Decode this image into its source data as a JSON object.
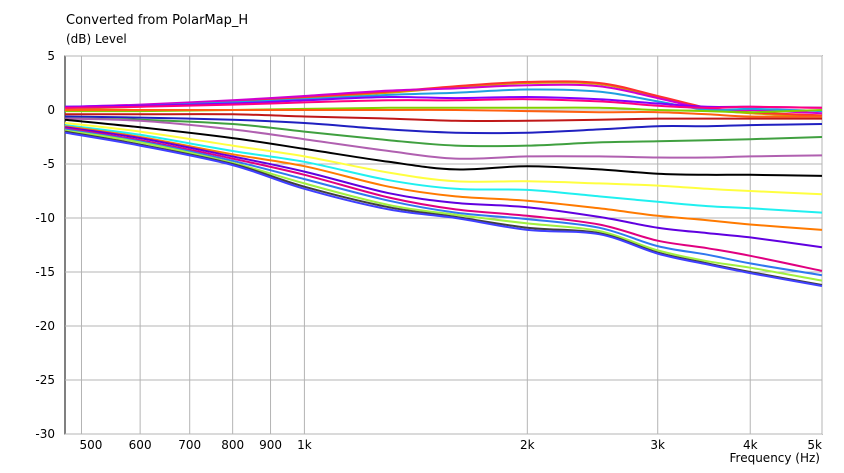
{
  "chart_data": {
    "type": "line",
    "title": "Converted from PolarMap_H",
    "ylabel": "(dB)  Level",
    "xlabel": "Frequency  (Hz)",
    "x_scale": "log",
    "xlim": [
      475,
      5000
    ],
    "ylim": [
      -30,
      5
    ],
    "grid": true,
    "colors": {
      "plot_background": "#ffffff",
      "grid": "#b4b4b4",
      "axis": "#000000"
    },
    "x_ticks": [
      {
        "value": 500,
        "label": "500"
      },
      {
        "value": 600,
        "label": "600"
      },
      {
        "value": 700,
        "label": "700"
      },
      {
        "value": 800,
        "label": "800"
      },
      {
        "value": 900,
        "label": "900"
      },
      {
        "value": 1000,
        "label": "1k"
      },
      {
        "value": 2000,
        "label": "2k"
      },
      {
        "value": 3000,
        "label": "3k"
      },
      {
        "value": 4000,
        "label": "4k"
      },
      {
        "value": 5000,
        "label": "5k"
      }
    ],
    "y_ticks": [
      {
        "value": 5,
        "label": "5"
      },
      {
        "value": 0,
        "label": "0"
      },
      {
        "value": -5,
        "label": "-5"
      },
      {
        "value": -10,
        "label": "-10"
      },
      {
        "value": -15,
        "label": "-15"
      },
      {
        "value": -20,
        "label": "-20"
      },
      {
        "value": -25,
        "label": "-25"
      },
      {
        "value": -30,
        "label": "-30"
      }
    ],
    "x": [
      475,
      600,
      800,
      1000,
      1300,
      1600,
      2000,
      2500,
      3000,
      3500,
      4000,
      5000
    ],
    "series": [
      {
        "color": "#d4a000",
        "values": [
          0.1,
          0.3,
          0.7,
          1.1,
          1.6,
          2.1,
          2.5,
          2.4,
          1.2,
          0.1,
          -0.3,
          -0.6
        ]
      },
      {
        "color": "#ff3030",
        "values": [
          0.2,
          0.4,
          0.8,
          1.2,
          1.7,
          2.2,
          2.6,
          2.5,
          1.3,
          0.2,
          -0.2,
          -0.5
        ]
      },
      {
        "color": "#d000d0",
        "values": [
          0.3,
          0.5,
          0.9,
          1.3,
          1.8,
          2.0,
          2.3,
          2.2,
          1.1,
          0.1,
          0.0,
          -0.3
        ]
      },
      {
        "color": "#20a0e0",
        "values": [
          0.3,
          0.4,
          0.7,
          1.0,
          1.4,
          1.6,
          1.9,
          1.7,
          0.8,
          0.0,
          0.1,
          -0.1
        ]
      },
      {
        "color": "#8000ff",
        "values": [
          0.3,
          0.4,
          0.6,
          0.9,
          1.2,
          1.1,
          1.2,
          1.0,
          0.6,
          0.3,
          0.3,
          0.2
        ]
      },
      {
        "color": "#ff0080",
        "values": [
          0.2,
          0.3,
          0.5,
          0.7,
          0.9,
          0.9,
          1.0,
          0.8,
          0.4,
          0.2,
          0.3,
          0.2
        ]
      },
      {
        "color": "#80d000",
        "values": [
          -0.1,
          -0.1,
          0.0,
          0.1,
          0.2,
          0.2,
          0.2,
          0.2,
          0.0,
          -0.1,
          -0.2,
          0.0
        ]
      },
      {
        "color": "#ff6010",
        "values": [
          0.0,
          0.0,
          0.0,
          0.0,
          0.0,
          0.0,
          -0.1,
          -0.2,
          -0.2,
          -0.4,
          -0.6,
          -0.6
        ]
      },
      {
        "color": "#c01818",
        "values": [
          -0.4,
          -0.4,
          -0.4,
          -0.6,
          -0.8,
          -1.0,
          -1.0,
          -0.9,
          -0.8,
          -0.8,
          -0.8,
          -0.8
        ]
      },
      {
        "color": "#2020c0",
        "values": [
          -0.6,
          -0.7,
          -0.9,
          -1.2,
          -1.8,
          -2.1,
          -2.1,
          -1.8,
          -1.5,
          -1.5,
          -1.4,
          -1.3
        ]
      },
      {
        "color": "#40a040",
        "values": [
          -0.8,
          -0.9,
          -1.3,
          -2.0,
          -2.8,
          -3.3,
          -3.3,
          -3.0,
          -2.9,
          -2.8,
          -2.7,
          -2.5
        ]
      },
      {
        "color": "#b060b0",
        "values": [
          -0.8,
          -1.0,
          -1.8,
          -2.7,
          -3.8,
          -4.5,
          -4.3,
          -4.3,
          -4.4,
          -4.4,
          -4.3,
          -4.2
        ]
      },
      {
        "color": "#000000",
        "values": [
          -0.9,
          -1.6,
          -2.6,
          -3.6,
          -4.8,
          -5.5,
          -5.2,
          -5.5,
          -5.9,
          -6.0,
          -6.0,
          -6.1
        ]
      },
      {
        "color": "#ffff40",
        "values": [
          -1.2,
          -2.0,
          -3.3,
          -4.3,
          -5.8,
          -6.6,
          -6.6,
          -6.8,
          -7.0,
          -7.3,
          -7.5,
          -7.8
        ]
      },
      {
        "color": "#20f0f0",
        "values": [
          -1.4,
          -2.3,
          -3.8,
          -4.8,
          -6.5,
          -7.3,
          -7.4,
          -8.0,
          -8.5,
          -8.9,
          -9.1,
          -9.5
        ]
      },
      {
        "color": "#ff7a00",
        "values": [
          -1.5,
          -2.5,
          -4.1,
          -5.2,
          -7.1,
          -8.0,
          -8.4,
          -9.1,
          -9.8,
          -10.2,
          -10.6,
          -11.1
        ]
      },
      {
        "color": "#6000e0",
        "values": [
          -1.6,
          -2.6,
          -4.3,
          -5.7,
          -7.7,
          -8.6,
          -9.0,
          -9.9,
          -10.9,
          -11.4,
          -11.8,
          -12.7
        ]
      },
      {
        "color": "#e00080",
        "values": [
          -1.7,
          -2.8,
          -4.5,
          -6.0,
          -8.1,
          -9.2,
          -9.8,
          -10.6,
          -12.1,
          -12.8,
          -13.5,
          -14.9
        ]
      },
      {
        "color": "#3078f0",
        "values": [
          -1.8,
          -2.9,
          -4.7,
          -6.4,
          -8.4,
          -9.5,
          -10.1,
          -10.9,
          -12.6,
          -13.4,
          -14.2,
          -15.3
        ]
      },
      {
        "color": "#a0f040",
        "values": [
          -1.9,
          -3.0,
          -4.9,
          -6.8,
          -8.8,
          -9.7,
          -10.5,
          -11.2,
          -13.0,
          -14.0,
          -14.6,
          -15.8
        ]
      },
      {
        "color": "#404040",
        "values": [
          -2.0,
          -3.2,
          -5.0,
          -7.1,
          -9.0,
          -9.9,
          -10.9,
          -11.4,
          -13.2,
          -14.2,
          -15.0,
          -16.2
        ]
      },
      {
        "color": "#4040ff",
        "values": [
          -2.1,
          -3.3,
          -5.1,
          -7.3,
          -9.2,
          -10.0,
          -11.1,
          -11.5,
          -13.3,
          -14.3,
          -15.1,
          -16.3
        ]
      }
    ]
  }
}
